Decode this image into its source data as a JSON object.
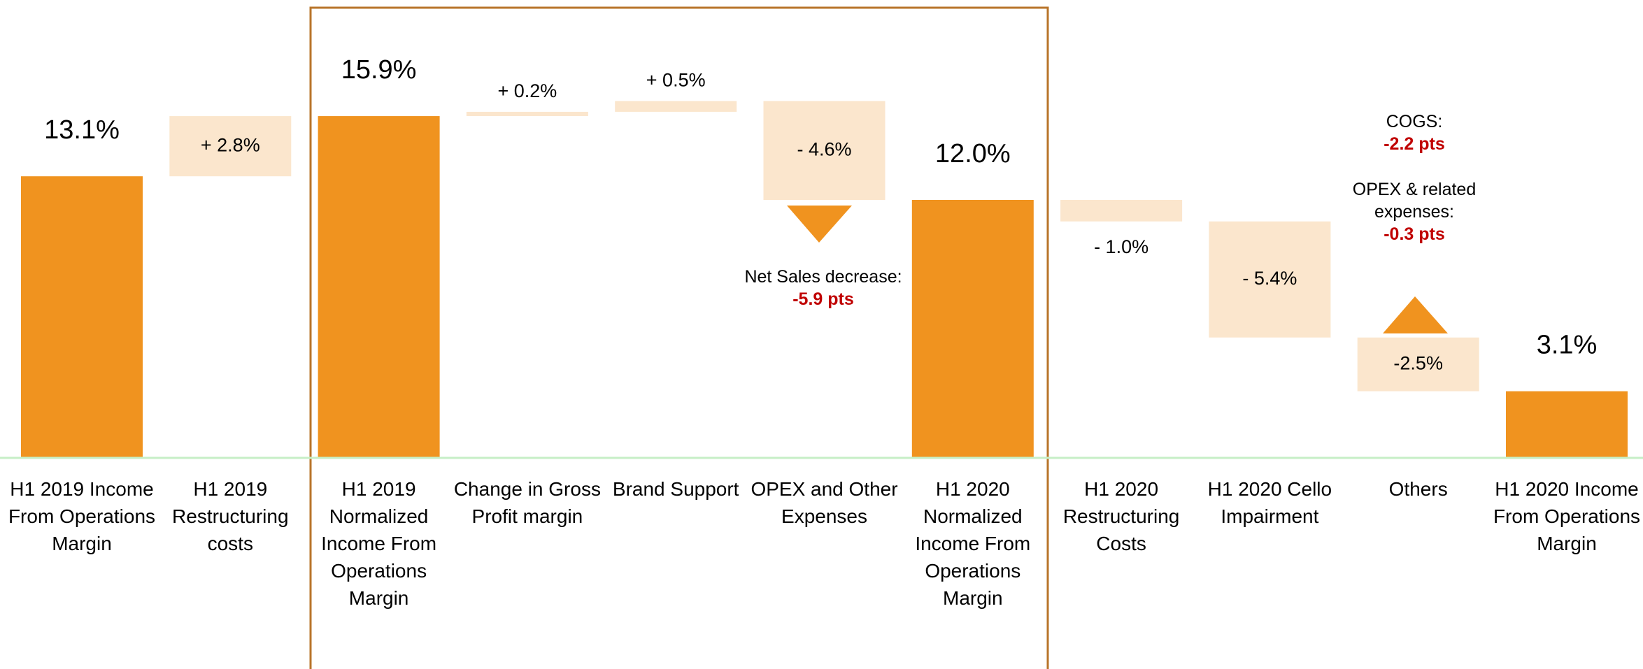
{
  "chart_data": {
    "type": "waterfall",
    "categories": [
      "H1 2019 Income From Operations Margin",
      "H1 2019 Restructuring costs",
      "H1 2019 Normalized Income From Operations Margin",
      "Change in Gross Profit margin",
      "Brand Support",
      "OPEX and Other Expenses",
      "H1 2020 Normalized Income From Operations Margin",
      "H1 2020 Restructuring Costs",
      "H1 2020 Cello Impairment",
      "Others",
      "H1 2020 Income From Operations Margin"
    ],
    "values": [
      13.1,
      2.8,
      15.9,
      0.2,
      0.5,
      -4.6,
      12.0,
      -1.0,
      -5.4,
      -2.5,
      3.1
    ],
    "value_labels": [
      "13.1%",
      "+ 2.8%",
      "15.9%",
      "+ 0.2%",
      "+ 0.5%",
      "- 4.6%",
      "12.0%",
      "- 1.0%",
      "- 5.4%",
      "-2.5%",
      "3.1%"
    ],
    "measures": [
      "total",
      "relative",
      "total",
      "relative",
      "relative",
      "relative",
      "total",
      "relative",
      "relative",
      "relative",
      "total"
    ],
    "total_color": "#f0931f",
    "delta_color": "#fbe6cd",
    "annotations": [
      {
        "text": "Net Sales decrease:",
        "value": "-5.9 pts"
      },
      {
        "text": "COGS:",
        "value": "-2.2 pts"
      },
      {
        "text": "OPEX & related expenses:",
        "value": "-0.3 pts"
      }
    ]
  }
}
